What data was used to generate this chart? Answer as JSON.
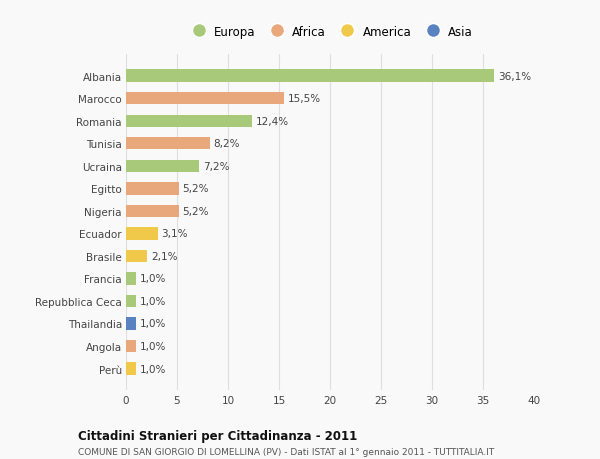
{
  "countries": [
    "Albania",
    "Marocco",
    "Romania",
    "Tunisia",
    "Ucraina",
    "Egitto",
    "Nigeria",
    "Ecuador",
    "Brasile",
    "Francia",
    "Repubblica Ceca",
    "Thailandia",
    "Angola",
    "Perù"
  ],
  "values": [
    36.1,
    15.5,
    12.4,
    8.2,
    7.2,
    5.2,
    5.2,
    3.1,
    2.1,
    1.0,
    1.0,
    1.0,
    1.0,
    1.0
  ],
  "labels": [
    "36,1%",
    "15,5%",
    "12,4%",
    "8,2%",
    "7,2%",
    "5,2%",
    "5,2%",
    "3,1%",
    "2,1%",
    "1,0%",
    "1,0%",
    "1,0%",
    "1,0%",
    "1,0%"
  ],
  "continents": [
    "Europa",
    "Africa",
    "Europa",
    "Africa",
    "Europa",
    "Africa",
    "Africa",
    "America",
    "America",
    "Europa",
    "Europa",
    "Asia",
    "Africa",
    "America"
  ],
  "continent_colors": {
    "Europa": "#a8c87a",
    "Africa": "#e8a87c",
    "America": "#f0c84a",
    "Asia": "#5b82c0"
  },
  "legend_order": [
    "Europa",
    "Africa",
    "America",
    "Asia"
  ],
  "xlim": [
    0,
    40
  ],
  "xticks": [
    0,
    5,
    10,
    15,
    20,
    25,
    30,
    35,
    40
  ],
  "title_bold": "Cittadini Stranieri per Cittadinanza - 2011",
  "subtitle": "COMUNE DI SAN GIORGIO DI LOMELLINA (PV) - Dati ISTAT al 1° gennaio 2011 - TUTTITALIA.IT",
  "bg_color": "#f9f9f9",
  "grid_color": "#dedede",
  "bar_height": 0.55,
  "label_fontsize": 7.5,
  "tick_fontsize": 7.5,
  "legend_fontsize": 8.5
}
